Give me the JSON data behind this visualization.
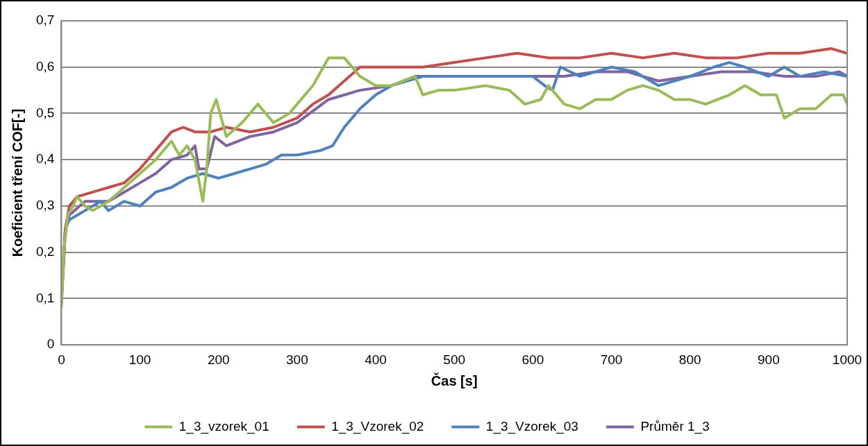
{
  "chart_data": {
    "type": "line",
    "xlabel": "Čas [s]",
    "ylabel": "Koeficient tření COF[-]",
    "xlim": [
      0,
      1000
    ],
    "xticks": [
      0,
      100,
      200,
      300,
      400,
      500,
      600,
      700,
      800,
      900,
      1000
    ],
    "ylim": [
      0,
      0.7
    ],
    "yticks": [
      0,
      {
        "value": 0.1,
        "label": "0,1"
      },
      {
        "value": 0.2,
        "label": "0,2"
      },
      {
        "value": 0.3,
        "label": "0,3"
      },
      {
        "value": 0.4,
        "label": "0,4"
      },
      {
        "value": 0.5,
        "label": "0,5"
      },
      {
        "value": 0.6,
        "label": "0,6"
      },
      {
        "value": 0.7,
        "label": "0,7"
      }
    ],
    "grid": "y",
    "legend": "bottom",
    "marker": "none",
    "line_style": "solid",
    "series": [
      {
        "name": "1_3_vzorek_01",
        "color": "#9bbb59",
        "x": [
          0,
          3,
          8,
          15,
          20,
          30,
          40,
          60,
          80,
          100,
          120,
          140,
          150,
          160,
          170,
          180,
          185,
          190,
          197,
          210,
          230,
          250,
          260,
          270,
          290,
          300,
          320,
          340,
          360,
          380,
          400,
          420,
          450,
          460,
          480,
          500,
          540,
          570,
          590,
          610,
          620,
          640,
          660,
          680,
          700,
          720,
          740,
          760,
          780,
          800,
          820,
          850,
          870,
          890,
          910,
          920,
          940,
          960,
          980,
          995,
          1000
        ],
        "values": [
          0.08,
          0.2,
          0.28,
          0.3,
          0.32,
          0.3,
          0.29,
          0.31,
          0.34,
          0.37,
          0.4,
          0.44,
          0.41,
          0.43,
          0.4,
          0.31,
          0.38,
          0.5,
          0.53,
          0.45,
          0.48,
          0.52,
          0.5,
          0.48,
          0.5,
          0.52,
          0.56,
          0.62,
          0.62,
          0.58,
          0.56,
          0.56,
          0.58,
          0.54,
          0.55,
          0.55,
          0.56,
          0.55,
          0.52,
          0.53,
          0.56,
          0.52,
          0.51,
          0.53,
          0.53,
          0.55,
          0.56,
          0.55,
          0.53,
          0.53,
          0.52,
          0.54,
          0.56,
          0.54,
          0.54,
          0.49,
          0.51,
          0.51,
          0.54,
          0.54,
          0.52
        ]
      },
      {
        "name": "1_3_Vzorek_02",
        "color": "#c0504d",
        "x": [
          0,
          5,
          10,
          20,
          40,
          60,
          80,
          100,
          120,
          140,
          155,
          170,
          190,
          210,
          240,
          270,
          300,
          320,
          340,
          360,
          380,
          400,
          430,
          460,
          500,
          540,
          580,
          620,
          660,
          700,
          740,
          780,
          820,
          860,
          900,
          940,
          980,
          1000
        ],
        "values": [
          0.09,
          0.25,
          0.3,
          0.32,
          0.33,
          0.34,
          0.35,
          0.38,
          0.42,
          0.46,
          0.47,
          0.46,
          0.46,
          0.47,
          0.46,
          0.47,
          0.49,
          0.52,
          0.54,
          0.57,
          0.6,
          0.6,
          0.6,
          0.6,
          0.61,
          0.62,
          0.63,
          0.62,
          0.62,
          0.63,
          0.62,
          0.63,
          0.62,
          0.62,
          0.63,
          0.63,
          0.64,
          0.63
        ]
      },
      {
        "name": "1_3_Vzorek_03",
        "color": "#4f81bd",
        "x": [
          0,
          5,
          10,
          30,
          50,
          60,
          80,
          100,
          120,
          140,
          160,
          180,
          200,
          220,
          240,
          260,
          280,
          300,
          330,
          345,
          360,
          380,
          400,
          420,
          440,
          460,
          500,
          540,
          570,
          600,
          615,
          625,
          635,
          660,
          700,
          730,
          760,
          780,
          800,
          830,
          850,
          870,
          900,
          920,
          940,
          970,
          1000
        ],
        "values": [
          0.1,
          0.25,
          0.27,
          0.29,
          0.31,
          0.29,
          0.31,
          0.3,
          0.33,
          0.34,
          0.36,
          0.37,
          0.36,
          0.37,
          0.38,
          0.39,
          0.41,
          0.41,
          0.42,
          0.43,
          0.47,
          0.51,
          0.54,
          0.56,
          0.57,
          0.58,
          0.58,
          0.58,
          0.58,
          0.58,
          0.56,
          0.55,
          0.6,
          0.58,
          0.6,
          0.59,
          0.56,
          0.57,
          0.58,
          0.6,
          0.61,
          0.6,
          0.58,
          0.6,
          0.58,
          0.59,
          0.58
        ]
      },
      {
        "name": "Průměr 1_3",
        "color": "#8064a2",
        "x": [
          0,
          5,
          10,
          30,
          60,
          80,
          100,
          120,
          140,
          160,
          170,
          175,
          185,
          195,
          210,
          240,
          270,
          300,
          340,
          380,
          420,
          450,
          500,
          560,
          600,
          640,
          680,
          720,
          760,
          800,
          840,
          880,
          920,
          960,
          990,
          1000
        ],
        "values": [
          0.09,
          0.25,
          0.28,
          0.31,
          0.31,
          0.33,
          0.35,
          0.37,
          0.4,
          0.41,
          0.43,
          0.38,
          0.38,
          0.45,
          0.43,
          0.45,
          0.46,
          0.48,
          0.53,
          0.55,
          0.56,
          0.58,
          0.58,
          0.58,
          0.58,
          0.58,
          0.59,
          0.59,
          0.57,
          0.58,
          0.59,
          0.59,
          0.58,
          0.58,
          0.59,
          0.58
        ]
      }
    ]
  }
}
